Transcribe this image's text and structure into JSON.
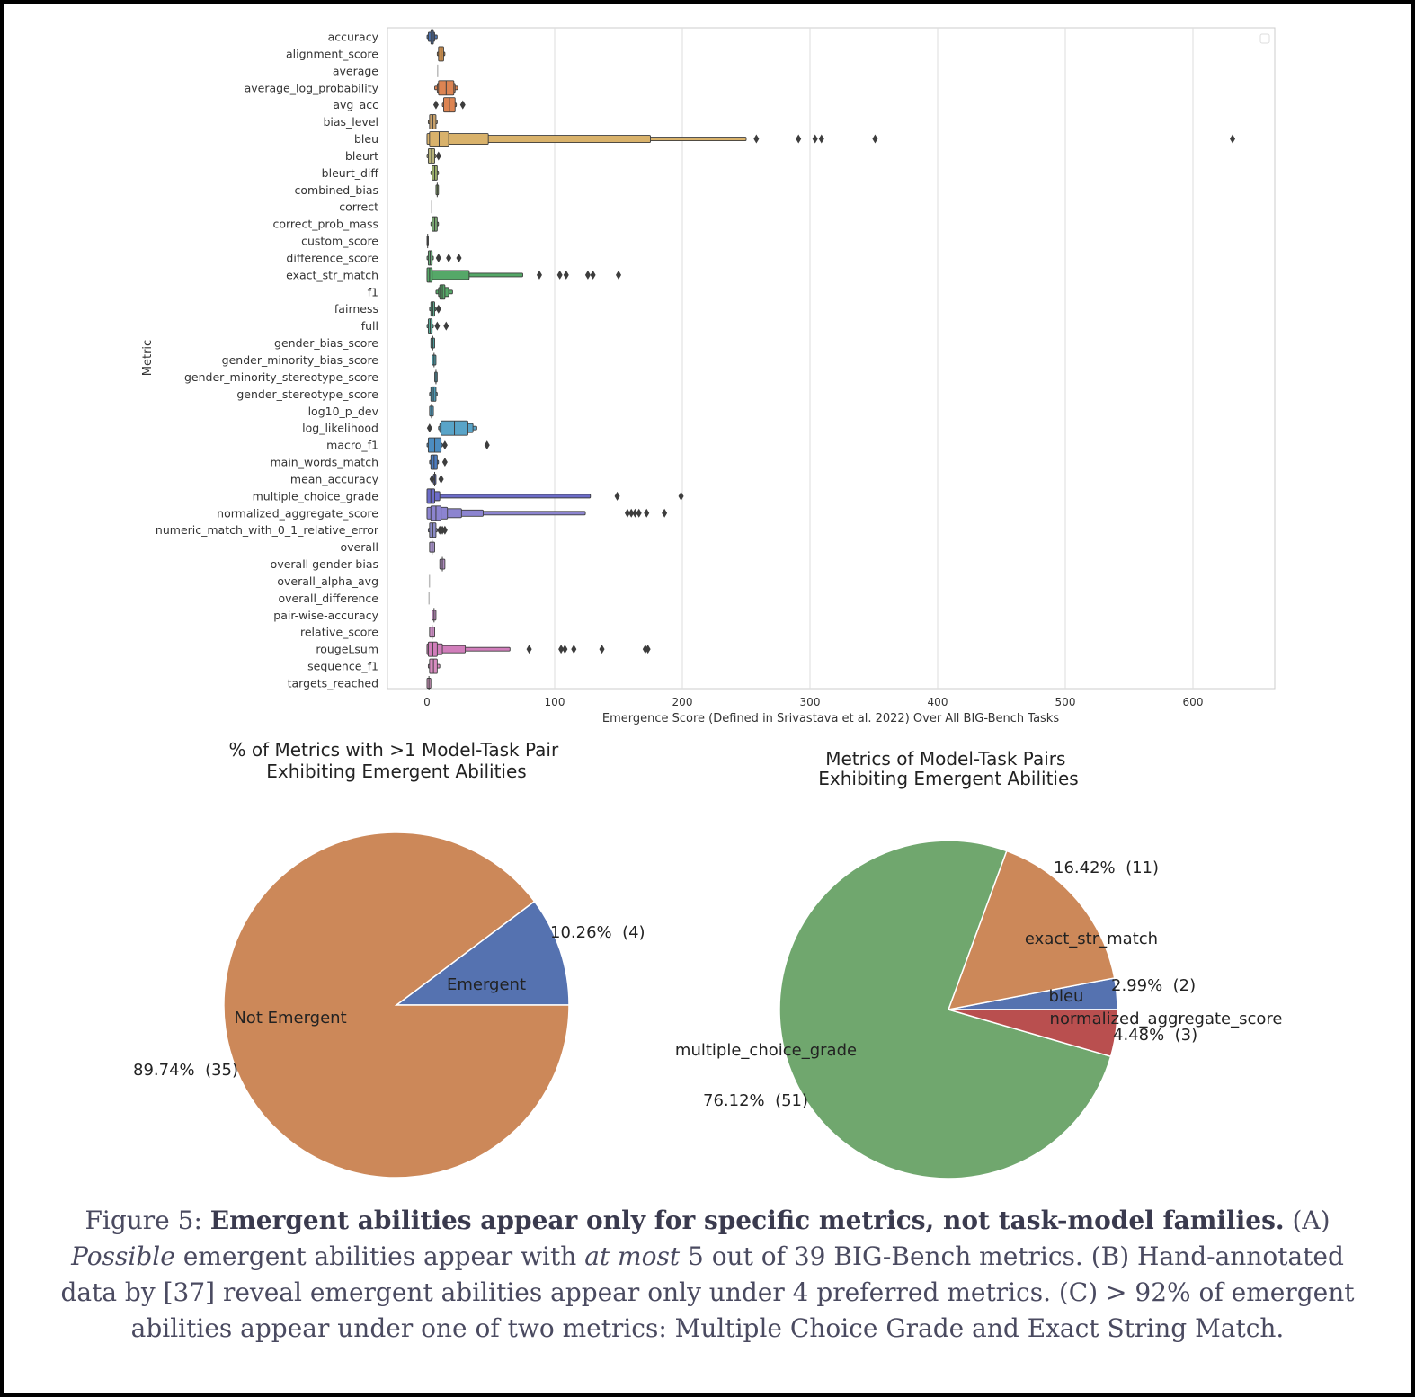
{
  "chart_data": [
    {
      "type": "boxen",
      "title": "",
      "xlabel": "Emergence Score (Defined in Srivastava et al. 2022) Over All BIG-Bench Tasks",
      "ylabel": "Metric",
      "xlim": [
        -30,
        660
      ],
      "xticks": [
        0,
        100,
        200,
        300,
        400,
        500,
        600
      ],
      "grid": "vertical",
      "legend": "top-right (empty)",
      "series": [
        {
          "name": "accuracy",
          "color": "#4c72b0",
          "boxes": [
            [
              0,
              8
            ],
            [
              1,
              6
            ],
            [
              3,
              5
            ]
          ],
          "outliers": []
        },
        {
          "name": "alignment_score",
          "color": "#c48a4c",
          "boxes": [
            [
              8,
              14
            ],
            [
              9,
              13
            ]
          ],
          "outliers": []
        },
        {
          "name": "average",
          "color": "#8c8c8c",
          "boxes": [],
          "outliers": [],
          "line": [
            8.3,
            8.5
          ]
        },
        {
          "name": "average_log_probability",
          "color": "#dd8452",
          "boxes": [
            [
              6,
              24
            ],
            [
              8,
              22
            ],
            [
              9,
              21
            ]
          ],
          "outliers": []
        },
        {
          "name": "avg_acc",
          "color": "#dd8452",
          "boxes": [
            [
              12,
              23
            ],
            [
              13,
              22
            ]
          ],
          "outliers": [
            7,
            28
          ]
        },
        {
          "name": "bias_level",
          "color": "#c9a26b",
          "boxes": [
            [
              1,
              8
            ],
            [
              2,
              7
            ]
          ],
          "outliers": []
        },
        {
          "name": "bleu",
          "color": "#d9b26b",
          "boxes": [
            [
              0,
              250
            ],
            [
              0,
              175
            ],
            [
              0,
              48
            ],
            [
              2,
              17
            ]
          ],
          "outliers": [
            258,
            291,
            304,
            309,
            351,
            631
          ]
        },
        {
          "name": "bleurt",
          "color": "#b7b27a",
          "boxes": [
            [
              0,
              7
            ],
            [
              1,
              6
            ]
          ],
          "outliers": [
            9
          ]
        },
        {
          "name": "bleurt_diff",
          "color": "#9bb06a",
          "boxes": [
            [
              3,
              9
            ],
            [
              4,
              8
            ]
          ],
          "outliers": []
        },
        {
          "name": "combined_bias",
          "color": "#8ab06a",
          "boxes": [
            [
              7,
              9
            ]
          ],
          "outliers": []
        },
        {
          "name": "correct",
          "color": "#8c8c8c",
          "boxes": [],
          "outliers": [],
          "line": [
            3.6,
            3.8
          ]
        },
        {
          "name": "correct_prob_mass",
          "color": "#7aa872",
          "boxes": [
            [
              3,
              9
            ],
            [
              4,
              8
            ]
          ],
          "outliers": []
        },
        {
          "name": "custom_score",
          "color": "#6a9c72",
          "boxes": [
            [
              0,
              1
            ]
          ],
          "outliers": []
        },
        {
          "name": "difference_score",
          "color": "#6aa87a",
          "boxes": [
            [
              0,
              5
            ],
            [
              1,
              4
            ]
          ],
          "outliers": [
            9,
            17,
            25
          ]
        },
        {
          "name": "exact_str_match",
          "color": "#55a868",
          "boxes": [
            [
              0,
              75
            ],
            [
              0,
              33
            ],
            [
              0,
              4
            ]
          ],
          "outliers": [
            88,
            104,
            109,
            126,
            130,
            150
          ]
        },
        {
          "name": "f1",
          "color": "#55a868",
          "boxes": [
            [
              7,
              20
            ],
            [
              9,
              17
            ],
            [
              10,
              14
            ]
          ],
          "outliers": []
        },
        {
          "name": "fairness",
          "color": "#5aa88a",
          "boxes": [
            [
              2,
              7
            ],
            [
              3,
              6
            ]
          ],
          "outliers": [
            9
          ]
        },
        {
          "name": "full",
          "color": "#5aa896",
          "boxes": [
            [
              0,
              5
            ],
            [
              1,
              4
            ]
          ],
          "outliers": [
            8,
            15
          ]
        },
        {
          "name": "gender_bias_score",
          "color": "#4c9c9c",
          "boxes": [
            [
              3,
              6
            ]
          ],
          "outliers": []
        },
        {
          "name": "gender_minority_bias_score",
          "color": "#4c9ca8",
          "boxes": [
            [
              4,
              7
            ]
          ],
          "outliers": []
        },
        {
          "name": "gender_minority_stereotype_score",
          "color": "#4c9cb0",
          "boxes": [
            [
              6,
              8
            ]
          ],
          "outliers": []
        },
        {
          "name": "gender_stereotype_score",
          "color": "#4c9cb8",
          "boxes": [
            [
              2,
              8
            ],
            [
              3,
              7
            ]
          ],
          "outliers": []
        },
        {
          "name": "log10_p_dev",
          "color": "#4c9cc0",
          "boxes": [
            [
              2,
              5
            ]
          ],
          "outliers": []
        },
        {
          "name": "log_likelihood",
          "color": "#59a4c8",
          "boxes": [
            [
              9,
              39
            ],
            [
              10,
              36
            ],
            [
              11,
              32
            ]
          ],
          "outliers": [
            2
          ]
        },
        {
          "name": "macro_f1",
          "color": "#4c8cc0",
          "boxes": [
            [
              0,
              12
            ],
            [
              1,
              11
            ]
          ],
          "outliers": [
            14,
            47
          ]
        },
        {
          "name": "main_words_match",
          "color": "#4c7cc0",
          "boxes": [
            [
              2,
              9
            ],
            [
              3,
              8
            ]
          ],
          "outliers": [
            14
          ]
        },
        {
          "name": "mean_accuracy",
          "color": "#5c6cc0",
          "boxes": [
            [
              5,
              7
            ]
          ],
          "outliers": [
            4,
            11
          ]
        },
        {
          "name": "multiple_choice_grade",
          "color": "#6c6cc8",
          "boxes": [
            [
              0,
              128
            ],
            [
              0,
              10
            ],
            [
              0,
              6
            ]
          ],
          "outliers": [
            149,
            199
          ]
        },
        {
          "name": "normalized_aggregate_score",
          "color": "#8c84d0",
          "boxes": [
            [
              0,
              124
            ],
            [
              0,
              44
            ],
            [
              0,
              27
            ],
            [
              0,
              16
            ],
            [
              3,
              11
            ]
          ],
          "outliers": [
            157,
            160,
            163,
            166,
            172,
            186
          ]
        },
        {
          "name": "numeric_match_with_0_1_relative_error",
          "color": "#8c8cc8",
          "boxes": [
            [
              1,
              8
            ],
            [
              2,
              7
            ]
          ],
          "outliers": [
            10,
            12,
            14
          ]
        },
        {
          "name": "overall",
          "color": "#a08cc0",
          "boxes": [
            [
              2,
              6
            ]
          ],
          "outliers": []
        },
        {
          "name": "overall gender bias",
          "color": "#b08cc0",
          "boxes": [
            [
              10,
              14
            ]
          ],
          "outliers": []
        },
        {
          "name": "overall_alpha_avg",
          "color": "#8c8c8c",
          "boxes": [],
          "outliers": [],
          "line": [
            1.9,
            2.1
          ]
        },
        {
          "name": "overall_difference",
          "color": "#8c8c8c",
          "boxes": [],
          "outliers": [],
          "line": [
            1.6,
            1.8
          ]
        },
        {
          "name": "pair-wise-accuracy",
          "color": "#c08cc0",
          "boxes": [
            [
              4,
              7
            ]
          ],
          "outliers": []
        },
        {
          "name": "relative_score",
          "color": "#c88cc0",
          "boxes": [
            [
              2,
              6
            ]
          ],
          "outliers": []
        },
        {
          "name": "rougeLsum",
          "color": "#d17ebb",
          "boxes": [
            [
              0,
              65
            ],
            [
              0,
              30
            ],
            [
              0,
              12
            ],
            [
              1,
              8
            ]
          ],
          "outliers": [
            80,
            105,
            108,
            115,
            137,
            171,
            173
          ]
        },
        {
          "name": "sequence_f1",
          "color": "#d88cc0",
          "boxes": [
            [
              1,
              10
            ],
            [
              2,
              8
            ]
          ],
          "outliers": []
        },
        {
          "name": "targets_reached",
          "color": "#c890b8",
          "boxes": [
            [
              0,
              3
            ]
          ],
          "outliers": []
        }
      ]
    },
    {
      "type": "pie",
      "title": "% of Metrics with >1 Model-Task Pair\nExhibiting Emergent Abilities",
      "slices": [
        {
          "label": "Emergent",
          "value": 4,
          "percent_label": "10.26%  (4)",
          "color": "#5572b0"
        },
        {
          "label": "Not Emergent",
          "value": 35,
          "percent_label": "89.74%  (35)",
          "color": "#cc8859"
        }
      ]
    },
    {
      "type": "pie",
      "title": "Metrics of Model-Task Pairs\nExhibiting Emergent Abilities",
      "slices": [
        {
          "label": "bleu",
          "value": 2,
          "percent_label": "2.99%  (2)",
          "color": "#5572b0"
        },
        {
          "label": "exact_str_match",
          "value": 11,
          "percent_label": "16.42%  (11)",
          "color": "#cc8859"
        },
        {
          "label": "multiple_choice_grade",
          "value": 51,
          "percent_label": "76.12%  (51)",
          "color": "#70a76e"
        },
        {
          "label": "normalized_aggregate_score",
          "value": 3,
          "percent_label": "4.48%  (3)",
          "color": "#b94f4f"
        }
      ]
    }
  ],
  "caption": {
    "prefix": "Figure 5: ",
    "bold": "Emergent abilities appear only for specific metrics, not task-model families.",
    "a_label": " (A) ",
    "a_italic1": "Possible",
    "a_text1": " emergent abilities appear with ",
    "a_italic2": "at most",
    "a_text2": " 5 out of 39 BIG-Bench metrics. (B) Hand-annotated data by [37] reveal emergent abilities appear only under 4 preferred metrics. (C) > 92% of emergent abilities appear under one of two metrics: Multiple Choice Grade and Exact String Match."
  }
}
